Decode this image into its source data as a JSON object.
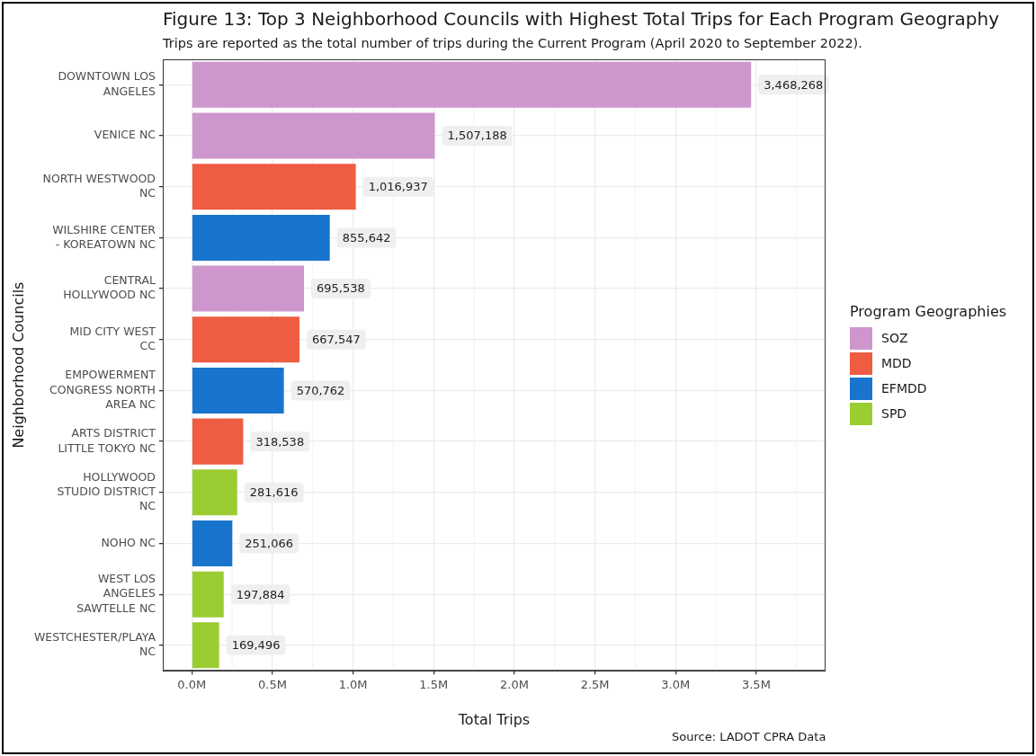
{
  "chart_data": {
    "type": "bar",
    "orientation": "horizontal",
    "title": "Figure 13: Top 3 Neighborhood Councils with Highest Total Trips for Each Program Geography",
    "subtitle": "Trips are reported as the total number of trips during the Current Program (April 2020 to September 2022).",
    "xlabel": "Total Trips",
    "ylabel": "Neighborhood Councils",
    "legend_title": "Program Geographies",
    "annotations": [
      "Source: LADOT CPRA Data"
    ],
    "categories": [
      "DOWNTOWN LOS ANGELES",
      "VENICE NC",
      "NORTH WESTWOOD NC",
      "WILSHIRE CENTER - KOREATOWN NC",
      "CENTRAL HOLLYWOOD NC",
      "MID CITY WEST CC",
      "EMPOWERMENT CONGRESS NORTH AREA NC",
      "ARTS DISTRICT LITTLE TOKYO NC",
      "HOLLYWOOD STUDIO DISTRICT NC",
      "NOHO NC",
      "WEST LOS ANGELES SAWTELLE NC",
      "WESTCHESTER/PLAYA NC"
    ],
    "series": [
      {
        "name": "SOZ",
        "color": "#cd96cd",
        "values": [
          3468268,
          1507188,
          null,
          null,
          695538,
          null,
          null,
          null,
          null,
          null,
          null,
          null
        ],
        "value_labels": [
          "3,468,268",
          "1,507,188",
          null,
          null,
          "695,538",
          null,
          null,
          null,
          null,
          null,
          null,
          null
        ]
      },
      {
        "name": "MDD",
        "color": "#ee5c42",
        "values": [
          null,
          null,
          1016937,
          null,
          null,
          667547,
          null,
          318538,
          null,
          null,
          null,
          null
        ],
        "value_labels": [
          null,
          null,
          "1,016,937",
          null,
          null,
          "667,547",
          null,
          "318,538",
          null,
          null,
          null,
          null
        ]
      },
      {
        "name": "EFMDD",
        "color": "#1874cd",
        "values": [
          null,
          null,
          null,
          855642,
          null,
          null,
          570762,
          null,
          null,
          251066,
          null,
          null
        ],
        "value_labels": [
          null,
          null,
          null,
          "855,642",
          null,
          null,
          "570,762",
          null,
          null,
          "251,066",
          null,
          null
        ]
      },
      {
        "name": "SPD",
        "color": "#9acd32",
        "values": [
          null,
          null,
          null,
          null,
          null,
          null,
          null,
          null,
          281616,
          null,
          197884,
          169496
        ],
        "value_labels": [
          null,
          null,
          null,
          null,
          null,
          null,
          null,
          null,
          "281,616",
          null,
          "197,884",
          "169,496"
        ]
      }
    ],
    "xlim": [
      -180000,
      3930000
    ],
    "xticks": [
      {
        "value": 0,
        "label": "0.0M"
      },
      {
        "value": 500000,
        "label": "0.5M"
      },
      {
        "value": 1000000,
        "label": "1.0M"
      },
      {
        "value": 1500000,
        "label": "1.5M"
      },
      {
        "value": 2000000,
        "label": "2.0M"
      },
      {
        "value": 2500000,
        "label": "2.5M"
      },
      {
        "value": 3000000,
        "label": "3.0M"
      },
      {
        "value": 3500000,
        "label": "3.5M"
      }
    ],
    "grid": true,
    "legend": "right"
  }
}
